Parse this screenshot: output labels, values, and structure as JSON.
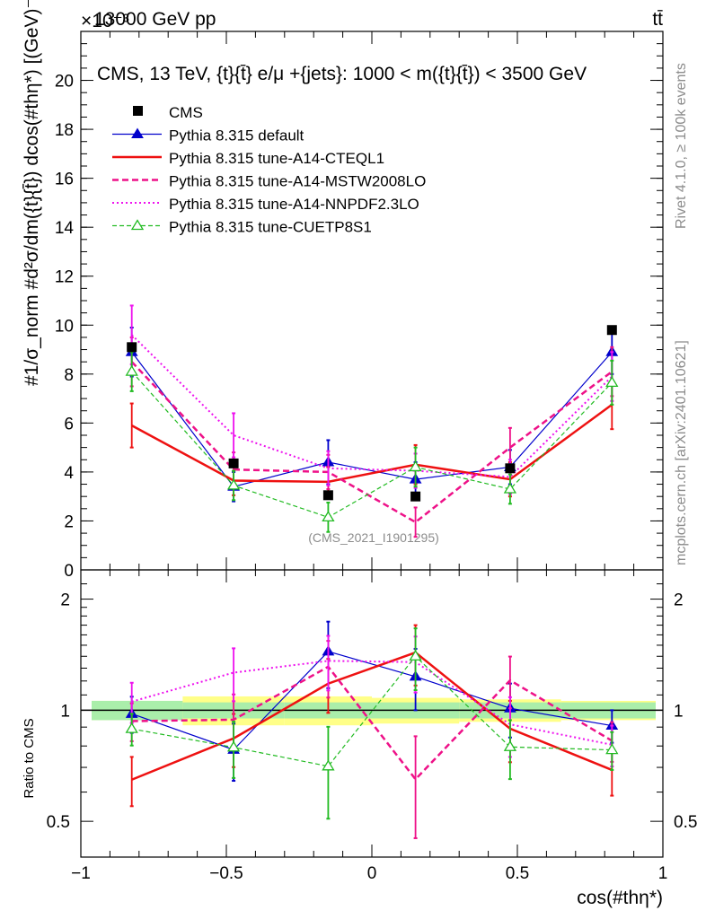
{
  "header": {
    "energy": "13000 GeV pp",
    "process": "tt̄",
    "exponent": "×10⁻³"
  },
  "side_labels": {
    "rivet": "Rivet 4.1.0, ≥ 100k events",
    "mcplots": "mcplots.cern.ch [arXiv:2401.10621]"
  },
  "chart_data": {
    "type": "line",
    "title": "CMS, 13 TeV, {t}{t̄} e/μ +{jets}: 1000 < m({t}{t̄}) < 3500 GeV",
    "xlabel": "cos(#thη*)",
    "ylabel": "#1/σ_norm #d²σ/dm({t}{t̄}) dcos(#thη*) [(GeV)⁻¹]",
    "ylabel_parts": {
      "hash": "#",
      "one": "1",
      "sigma_norm": "σnorm",
      "hash2": "#",
      "d2sigma": "d²σ",
      "dm": "dm({t",
      "rest": "{t}) dcos(#thη*)} [(GeV)⁻¹]"
    },
    "ratio_ylabel": "Ratio to CMS",
    "watermark": "(CMS_2021_I1901295)",
    "xlim": [
      -1,
      1
    ],
    "ylim": [
      0,
      22
    ],
    "ratio_ylim": [
      0.4,
      2.4
    ],
    "x_ticks": [
      "−1",
      "−0.5",
      "0",
      "0.5",
      "1"
    ],
    "x_tick_values": [
      -1,
      -0.5,
      0,
      0.5,
      1
    ],
    "y_ticks": [
      "0",
      "2",
      "4",
      "6",
      "8",
      "10",
      "12",
      "14",
      "16",
      "18",
      "20"
    ],
    "y_tick_values": [
      0,
      2,
      4,
      6,
      8,
      10,
      12,
      14,
      16,
      18,
      20
    ],
    "ratio_ticks": [
      "0.5",
      "1",
      "2"
    ],
    "ratio_tick_values": [
      0.5,
      1,
      2
    ],
    "bin_edges": [
      -1,
      -0.65,
      -0.3,
      0,
      0.3,
      0.65,
      1
    ],
    "x": [
      -0.825,
      -0.475,
      -0.15,
      0.15,
      0.475,
      0.825
    ],
    "cms": {
      "name": "CMS",
      "values": [
        9.1,
        4.35,
        3.05,
        3.0,
        4.15,
        9.8
      ],
      "uncert_stat": [
        0.06,
        0.05,
        0.05,
        0.05,
        0.05,
        0.05
      ],
      "uncert_total": [
        0.06,
        0.09,
        0.09,
        0.08,
        0.07,
        0.06
      ]
    },
    "series": [
      {
        "name": "Pythia 8.315 default",
        "color": "#0000cc",
        "dash": "",
        "width": 1.2,
        "marker": "triangle-filled",
        "values": [
          8.9,
          3.4,
          4.4,
          3.7,
          4.2,
          8.9
        ],
        "errors": [
          1.0,
          0.6,
          0.9,
          0.7,
          0.7,
          0.9
        ]
      },
      {
        "name": "Pythia 8.315 tune-A14-CTEQL1",
        "color": "#ee1111",
        "dash": "",
        "width": 2.5,
        "marker": "none",
        "values": [
          5.9,
          3.65,
          3.6,
          4.3,
          3.7,
          6.75
        ],
        "errors": [
          0.9,
          0.6,
          0.6,
          0.8,
          0.7,
          1.0
        ]
      },
      {
        "name": "Pythia 8.315 tune-A14-MSTW2008LO",
        "color": "#ee1188",
        "dash": "7,4",
        "width": 2.5,
        "marker": "none",
        "values": [
          8.5,
          4.1,
          4.0,
          1.95,
          5.0,
          8.1
        ],
        "errors": [
          1.0,
          0.7,
          0.7,
          0.6,
          0.8,
          1.0
        ]
      },
      {
        "name": "Pythia 8.315 tune-A14-NNPDF2.3LO",
        "color": "#ee11ee",
        "dash": "2,3",
        "width": 2.0,
        "marker": "none",
        "values": [
          9.6,
          5.5,
          4.15,
          4.05,
          3.8,
          7.9
        ],
        "errors": [
          1.2,
          0.9,
          0.7,
          0.7,
          0.7,
          1.0
        ]
      },
      {
        "name": "Pythia 8.315 tune-CUETP8S1",
        "color": "#22bb22",
        "dash": "5,3",
        "width": 1.2,
        "marker": "triangle-open",
        "values": [
          8.1,
          3.45,
          2.15,
          4.2,
          3.3,
          7.65
        ],
        "errors": [
          0.8,
          0.6,
          0.6,
          0.8,
          0.6,
          0.9
        ]
      }
    ]
  }
}
